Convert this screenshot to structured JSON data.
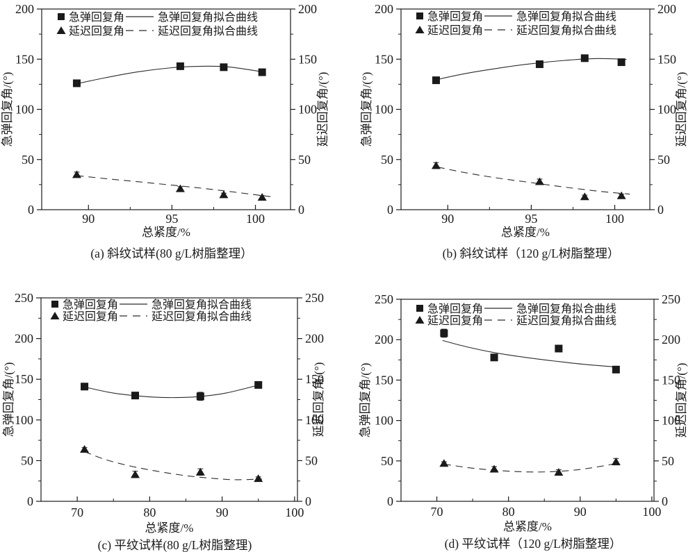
{
  "page": {
    "background": "#ffffff",
    "ink": "#1a1a1a"
  },
  "chart_data": [
    {
      "id": "a",
      "type": "scatter",
      "caption": "(a) 斜纹试样(80 g/L树脂整理）",
      "xlabel": "总紧度/%",
      "ylabel_left": "急弹回复角/(°)",
      "ylabel_right": "延迟回复角/(°)",
      "xlim": [
        87.2,
        102.1
      ],
      "xticks": [
        90,
        95,
        100
      ],
      "xminorticks": [
        92.5,
        97.5
      ],
      "ylim": [
        0,
        200
      ],
      "yticks": [
        0,
        50,
        100,
        150,
        200
      ],
      "yminorticks": [
        25,
        75,
        125,
        175
      ],
      "legend": [
        {
          "marker": "square",
          "label": "急弹回复角",
          "line": "solid",
          "line_label": "急弹回复角拟合曲线"
        },
        {
          "marker": "triangle",
          "label": "延迟回复角",
          "line": "dashed",
          "line_label": "延迟回复角拟合曲线"
        }
      ],
      "series": [
        {
          "name": "急弹回复角",
          "marker": "square",
          "x": [
            89.3,
            95.5,
            98.1,
            100.4
          ],
          "y": [
            126,
            143,
            142,
            137
          ],
          "yerr": [
            0,
            0,
            0,
            0
          ]
        },
        {
          "name": "延迟回复角",
          "marker": "triangle",
          "x": [
            89.3,
            95.5,
            98.1,
            100.4
          ],
          "y": [
            35,
            21,
            15,
            12.5
          ],
          "yerr": [
            2.5,
            2,
            1.5,
            1.5
          ]
        }
      ],
      "curves": [
        {
          "name": "急弹回复角拟合曲线",
          "style": "solid",
          "samples": [
            [
              89.3,
              125.5
            ],
            [
              91,
              131.5
            ],
            [
              93,
              137.5
            ],
            [
              95,
              141.5
            ],
            [
              96.8,
              143
            ],
            [
              98.4,
              142.3
            ],
            [
              100.4,
              137.5
            ]
          ]
        },
        {
          "name": "延迟回复角拟合曲线",
          "style": "dashed",
          "samples": [
            [
              89.3,
              34
            ],
            [
              91,
              31
            ],
            [
              93,
              27.8
            ],
            [
              95,
              24.5
            ],
            [
              97,
              21
            ],
            [
              99,
              17
            ],
            [
              100.9,
              13
            ]
          ]
        }
      ]
    },
    {
      "id": "b",
      "type": "scatter",
      "caption": "(b) 斜纹试样（120 g/L树脂整理）",
      "xlabel": "总紧度/%",
      "ylabel_left": "急弹回复角/(°)",
      "ylabel_right": "延迟回复角/(°)",
      "xlim": [
        87.2,
        102.1
      ],
      "xticks": [
        90,
        95,
        100
      ],
      "xminorticks": [
        92.5,
        97.5
      ],
      "ylim": [
        0,
        200
      ],
      "yticks": [
        0,
        50,
        100,
        150,
        200
      ],
      "yminorticks": [
        25,
        75,
        125,
        175
      ],
      "legend": [
        {
          "marker": "square",
          "label": "急弹回复角",
          "line": "solid",
          "line_label": "急弹回复角拟合曲线"
        },
        {
          "marker": "triangle",
          "label": "延迟回复角",
          "line": "dashed",
          "line_label": "延迟回复角拟合曲线"
        }
      ],
      "series": [
        {
          "name": "急弹回复角",
          "marker": "square",
          "x": [
            89.3,
            95.5,
            98.2,
            100.4
          ],
          "y": [
            129,
            145,
            151,
            147
          ],
          "yerr": [
            0,
            0,
            0,
            2
          ]
        },
        {
          "name": "延迟回复角",
          "marker": "triangle",
          "x": [
            89.3,
            95.5,
            98.2,
            100.4
          ],
          "y": [
            44,
            28,
            13,
            14
          ],
          "yerr": [
            3,
            2.5,
            1.5,
            1.5
          ]
        }
      ],
      "curves": [
        {
          "name": "急弹回复角拟合曲线",
          "style": "solid",
          "samples": [
            [
              89.3,
              129.5
            ],
            [
              91,
              135.5
            ],
            [
              93,
              141
            ],
            [
              95,
              145.5
            ],
            [
              97,
              148.8
            ],
            [
              98.8,
              150.6
            ],
            [
              100.7,
              149.8
            ]
          ]
        },
        {
          "name": "延迟回复角拟合曲线",
          "style": "dashed",
          "samples": [
            [
              89.4,
              42.5
            ],
            [
              91,
              37
            ],
            [
              93,
              31.5
            ],
            [
              95,
              27
            ],
            [
              97,
              22.5
            ],
            [
              99,
              18.5
            ],
            [
              100.9,
              15.5
            ]
          ]
        }
      ]
    },
    {
      "id": "c",
      "type": "scatter",
      "caption": "(c) 平纹试样(80 g/L树脂整理)",
      "xlabel": "总紧度/%",
      "ylabel_left": "急弹回复角/(°)",
      "ylabel_right": "延迟回复角/(°)",
      "xlim": [
        65,
        100.4
      ],
      "xticks": [
        70,
        80,
        90,
        100
      ],
      "xminorticks": [
        75,
        85,
        95
      ],
      "ylim": [
        0,
        250
      ],
      "yticks": [
        0,
        50,
        100,
        150,
        200,
        250
      ],
      "yminorticks": [
        25,
        75,
        125,
        175,
        225
      ],
      "legend": [
        {
          "marker": "square",
          "label": "急弹回复角",
          "line": "solid",
          "line_label": "急弹回复角拟合曲线"
        },
        {
          "marker": "triangle",
          "label": "延迟回复角",
          "line": "dashed",
          "line_label": "延迟回复角拟合曲线"
        }
      ],
      "series": [
        {
          "name": "急弹回复角",
          "marker": "square",
          "x": [
            71,
            78,
            87,
            95
          ],
          "y": [
            141,
            130,
            129,
            143
          ],
          "yerr": [
            0,
            0,
            5,
            0
          ]
        },
        {
          "name": "延迟回复角",
          "marker": "triangle",
          "x": [
            71,
            78,
            87,
            95
          ],
          "y": [
            64,
            33,
            36,
            28
          ],
          "yerr": [
            2,
            4,
            4,
            2
          ]
        }
      ],
      "curves": [
        {
          "name": "急弹回复角拟合曲线",
          "style": "solid",
          "samples": [
            [
              71,
              140.5
            ],
            [
              75,
              133
            ],
            [
              79,
              129
            ],
            [
              82.5,
              127.5
            ],
            [
              86.5,
              128.5
            ],
            [
              90.5,
              133
            ],
            [
              95.3,
              143.5
            ]
          ]
        },
        {
          "name": "延迟回复角拟合曲线",
          "style": "dashed",
          "samples": [
            [
              71,
              61
            ],
            [
              74,
              51
            ],
            [
              77.5,
              43
            ],
            [
              81,
              37
            ],
            [
              85,
              31.5
            ],
            [
              89,
              28
            ],
            [
              92,
              26.5
            ],
            [
              95.5,
              27.5
            ]
          ]
        }
      ]
    },
    {
      "id": "d",
      "type": "scatter",
      "caption": "(d) 平纹试样（120 g/L树脂整理）",
      "xlabel": "总紧度/%",
      "ylabel_left": "急弹回复角/(°)",
      "ylabel_right": "延迟回复角/(°)",
      "xlim": [
        65,
        100.3
      ],
      "xticks": [
        70,
        80,
        90,
        100
      ],
      "xminorticks": [
        75,
        85,
        95
      ],
      "ylim": [
        0,
        250
      ],
      "yticks": [
        0,
        50,
        100,
        150,
        200,
        250
      ],
      "yminorticks": [
        25,
        75,
        125,
        175,
        225
      ],
      "legend": [
        {
          "marker": "square",
          "label": "急弹回复角",
          "line": "solid",
          "line_label": "急弹回复角拟合曲线"
        },
        {
          "marker": "triangle",
          "label": "延迟回复角",
          "line": "dashed",
          "line_label": "延迟回复角拟合曲线"
        }
      ],
      "series": [
        {
          "name": "急弹回复角",
          "marker": "square",
          "x": [
            71,
            78,
            87,
            95
          ],
          "y": [
            208,
            178,
            189,
            163
          ],
          "yerr": [
            5,
            0,
            4,
            0
          ]
        },
        {
          "name": "延迟回复角",
          "marker": "triangle",
          "x": [
            71,
            78,
            87,
            95
          ],
          "y": [
            47,
            40,
            36,
            49
          ],
          "yerr": [
            2,
            3,
            3,
            4
          ]
        }
      ],
      "curves": [
        {
          "name": "急弹回复角拟合曲线",
          "style": "solid",
          "samples": [
            [
              70.8,
              199
            ],
            [
              74,
              191.5
            ],
            [
              78,
              184
            ],
            [
              82,
              178.5
            ],
            [
              86,
              174
            ],
            [
              90.5,
              169.5
            ],
            [
              95.4,
              166
            ]
          ]
        },
        {
          "name": "延迟回复角拟合曲线",
          "style": "dashed",
          "samples": [
            [
              71,
              46
            ],
            [
              74.5,
              41.5
            ],
            [
              78,
              38.5
            ],
            [
              82,
              36.5
            ],
            [
              85.5,
              36.5
            ],
            [
              89,
              38.5
            ],
            [
              92,
              42
            ],
            [
              95.5,
              47.5
            ]
          ]
        }
      ]
    }
  ]
}
